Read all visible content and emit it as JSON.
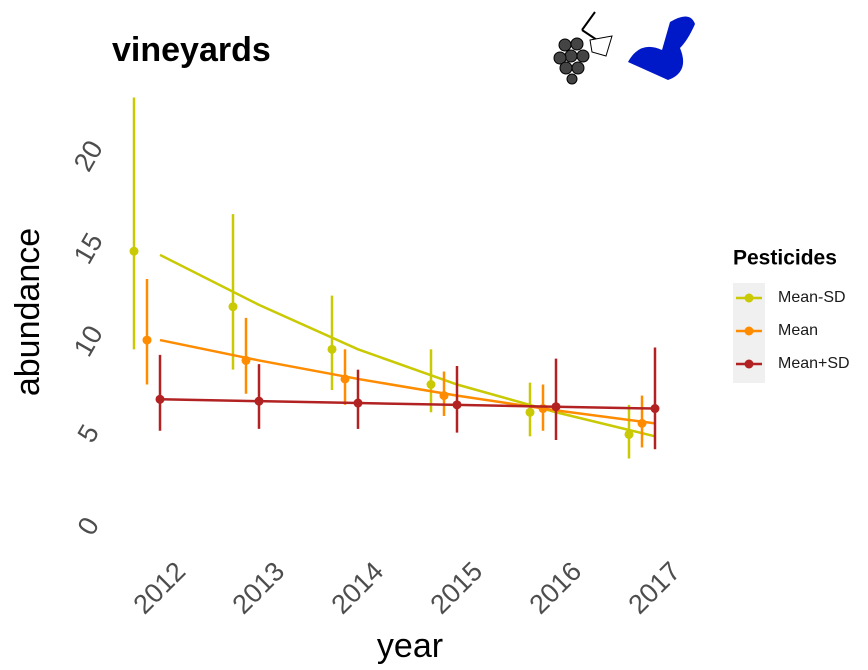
{
  "chart_data": {
    "type": "line",
    "title": "vineyards",
    "x_label": "year",
    "y_label": "abundance",
    "legend_title": "Pesticides",
    "categories": [
      "2012",
      "2013",
      "2014",
      "2015",
      "2016",
      "2017"
    ],
    "ylim": [
      -0.7,
      23.5
    ],
    "yticks": [
      0,
      5,
      10,
      15,
      20
    ],
    "grid": false,
    "legend_position": "right",
    "series": [
      {
        "name": "Mean-SD",
        "color": "#c9c904",
        "values": [
          14.9,
          11.9,
          9.6,
          7.7,
          6.2,
          5.0
        ],
        "lower": [
          9.6,
          8.5,
          7.4,
          6.2,
          4.9,
          3.7
        ],
        "upper": [
          23.2,
          16.9,
          12.5,
          9.6,
          7.8,
          6.6
        ],
        "fit": [
          14.7,
          12.0,
          9.6,
          7.7,
          6.2,
          4.9
        ]
      },
      {
        "name": "Mean",
        "color": "#ff8c00",
        "values": [
          10.1,
          9.0,
          8.0,
          7.1,
          6.4,
          5.6
        ],
        "lower": [
          7.7,
          7.2,
          6.6,
          6.0,
          5.2,
          4.3
        ],
        "upper": [
          13.4,
          11.3,
          9.6,
          8.4,
          7.7,
          7.1
        ],
        "fit": [
          10.1,
          9.0,
          8.0,
          7.1,
          6.3,
          5.6
        ]
      },
      {
        "name": "Mean+SD",
        "color": "#b22222",
        "values": [
          6.9,
          6.8,
          6.7,
          6.6,
          6.5,
          6.4
        ],
        "lower": [
          5.2,
          5.3,
          5.3,
          5.1,
          4.7,
          4.2
        ],
        "upper": [
          9.3,
          8.8,
          8.5,
          8.7,
          9.1,
          9.7
        ],
        "fit": [
          6.9,
          6.8,
          6.7,
          6.6,
          6.5,
          6.4
        ]
      }
    ]
  }
}
